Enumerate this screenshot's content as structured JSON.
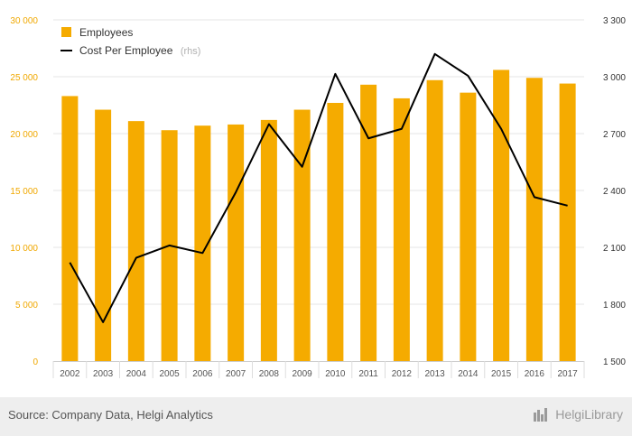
{
  "chart_data": {
    "type": "bar",
    "categories": [
      "2002",
      "2003",
      "2004",
      "2005",
      "2006",
      "2007",
      "2008",
      "2009",
      "2010",
      "2011",
      "2012",
      "2013",
      "2014",
      "2015",
      "2016",
      "2017"
    ],
    "series": [
      {
        "name": "Employees",
        "type": "bar",
        "axis": "left",
        "color": "#f5ab00",
        "values": [
          23300,
          22100,
          21100,
          20300,
          20700,
          20800,
          21200,
          22100,
          22700,
          24300,
          23100,
          24700,
          23600,
          25600,
          24900,
          24400
        ]
      },
      {
        "name": "Cost Per Employee",
        "type": "line",
        "axis": "right",
        "color": "#000000",
        "values": [
          2020,
          1705,
          2045,
          2110,
          2070,
          2390,
          2750,
          2525,
          3015,
          2675,
          2725,
          3120,
          3005,
          2725,
          2365,
          2320
        ]
      }
    ],
    "legend_note": "(rhs)",
    "y_left": {
      "min": 0,
      "max": 30000,
      "ticks": [
        "0",
        "5 000",
        "10 000",
        "15 000",
        "20 000",
        "25 000",
        "30 000"
      ],
      "tick_values": [
        0,
        5000,
        10000,
        15000,
        20000,
        25000,
        30000
      ]
    },
    "y_right": {
      "min": 1500,
      "max": 3300,
      "ticks": [
        "1 500",
        "1 800",
        "2 100",
        "2 400",
        "2 700",
        "3 000",
        "3 300"
      ],
      "tick_values": [
        1500,
        1800,
        2100,
        2400,
        2700,
        3000,
        3300
      ]
    },
    "grid": true,
    "legend_position": "top-left"
  },
  "footer": {
    "source": "Source: Company Data, Helgi Analytics",
    "brand": "HelgiLibrary",
    "brand_icon": "helgi-logo-icon"
  },
  "colors": {
    "bar": "#f5ab00",
    "line": "#000000",
    "left_axis_text": "#f0a800",
    "footer_bg": "#eeeeee"
  }
}
